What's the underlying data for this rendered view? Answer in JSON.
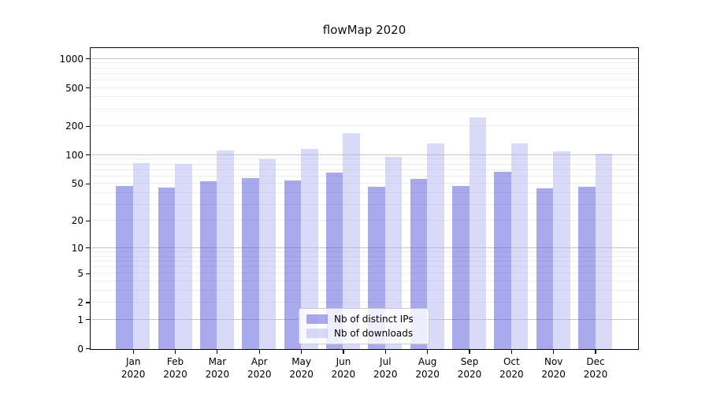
{
  "title": "flowMap 2020",
  "chart_data": {
    "type": "bar",
    "title": "flowMap 2020",
    "categories": [
      {
        "month": "Jan",
        "year": "2020"
      },
      {
        "month": "Feb",
        "year": "2020"
      },
      {
        "month": "Mar",
        "year": "2020"
      },
      {
        "month": "Apr",
        "year": "2020"
      },
      {
        "month": "May",
        "year": "2020"
      },
      {
        "month": "Jun",
        "year": "2020"
      },
      {
        "month": "Jul",
        "year": "2020"
      },
      {
        "month": "Aug",
        "year": "2020"
      },
      {
        "month": "Sep",
        "year": "2020"
      },
      {
        "month": "Oct",
        "year": "2020"
      },
      {
        "month": "Nov",
        "year": "2020"
      },
      {
        "month": "Dec",
        "year": "2020"
      }
    ],
    "series": [
      {
        "name": "Nb of distinct IPs",
        "color": "rgba(83,83,221,0.5)",
        "values": [
          48,
          46,
          54,
          58,
          55,
          66,
          47,
          57,
          48,
          67,
          45,
          47
        ]
      },
      {
        "name": "Nb of downloads",
        "color": "rgba(179,179,241,0.5)",
        "values": [
          84,
          82,
          112,
          92,
          118,
          170,
          96,
          133,
          250,
          134,
          110,
          104
        ]
      }
    ],
    "y_axis": {
      "scale": "log1p",
      "tick_values": [
        0,
        1,
        2,
        5,
        10,
        20,
        50,
        100,
        200,
        500,
        1000
      ],
      "top_value": 1282,
      "major_gridlines": [
        1,
        10,
        100,
        1000
      ],
      "minor_gridline_decades": [
        1,
        10,
        100
      ]
    },
    "legend": {
      "position": "lower-center"
    },
    "grid": true
  },
  "colors": {
    "bar_distinct_ips": "rgba(83,83,221,0.5)",
    "bar_downloads": "rgba(179,179,241,0.5)",
    "grid_major": "#c3c3c3",
    "grid_minor": "#ececec",
    "spine": "#000000",
    "text": "#000000",
    "legend_border": "#cccccc",
    "legend_background": "rgba(255,255,255,0.8)"
  }
}
